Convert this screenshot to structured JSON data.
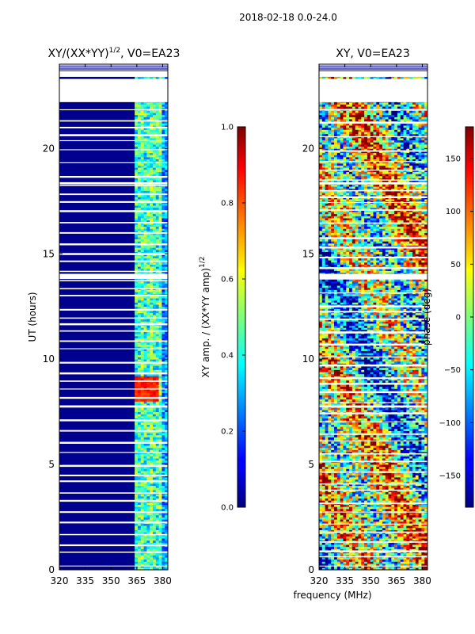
{
  "figure": {
    "suptitle": "2018-02-18 0.0-24.0",
    "shared_xlabel": "frequency (MHz)"
  },
  "chart_data": [
    {
      "type": "heatmap",
      "title_main": "XY/(XX*YY)",
      "title_exponent": "1/2",
      "title_suffix": ", V0=EA23",
      "xlabel": "",
      "ylabel": "UT (hours)",
      "xlim": [
        320,
        383
      ],
      "ylim": [
        0,
        24
      ],
      "xticks": [
        320,
        335,
        350,
        365,
        380
      ],
      "yticks": [
        0,
        5,
        10,
        15,
        20
      ],
      "colormap": "jet",
      "colorbar": {
        "label_main": "XY amp. / (XX*YY amp)",
        "label_exponent": "1/2",
        "range": [
          0.0,
          1.0
        ],
        "ticks": [
          "0.0",
          "0.2",
          "0.4",
          "0.6",
          "0.8",
          "1.0"
        ]
      },
      "no_data_intervals_hours": [
        [
          22.2,
          23.3
        ]
      ],
      "active_band_mhz": [
        363,
        380
      ],
      "high_amplitude_patch": {
        "freq_mhz": [
          363,
          378
        ],
        "ut_hours": [
          8.0,
          9.2
        ],
        "value": 0.85
      }
    },
    {
      "type": "heatmap",
      "title": "XY, V0=EA23",
      "xlabel": "frequency (MHz)",
      "ylabel": "",
      "xlim": [
        320,
        383
      ],
      "ylim": [
        0,
        24
      ],
      "xticks": [
        320,
        335,
        350,
        365,
        380
      ],
      "yticks": [
        0,
        5,
        10,
        15,
        20
      ],
      "colormap": "jet",
      "colorbar": {
        "label": "phase (deg)",
        "range": [
          -180,
          180
        ],
        "ticks": [
          "150",
          "100",
          "50",
          "0",
          "−50",
          "−100",
          "−150"
        ]
      },
      "no_data_intervals_hours": [
        [
          22.2,
          23.3
        ]
      ]
    }
  ]
}
